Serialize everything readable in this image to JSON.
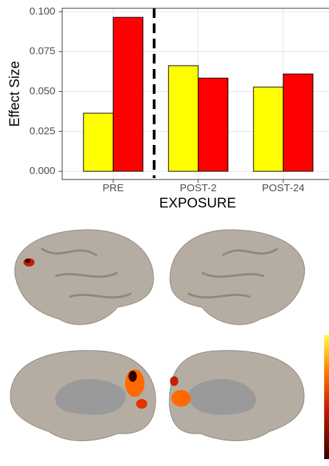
{
  "chart_data": {
    "type": "bar",
    "y_label": "Effect Size",
    "x_label": "EXPOSURE",
    "categories": [
      "PRE",
      "POST-2",
      "POST-24"
    ],
    "series": [
      {
        "color": "#ffff00",
        "values": [
          0.0364,
          0.0662,
          0.0528
        ]
      },
      {
        "color": "#ff0000",
        "values": [
          0.0965,
          0.0584,
          0.061
        ]
      }
    ],
    "ylim": [
      -0.0048,
      0.1
    ],
    "yticks": [
      {
        "value": 0,
        "label": "0.000"
      },
      {
        "value": 0.025,
        "label": "0.025"
      },
      {
        "value": 0.05,
        "label": "0.050"
      },
      {
        "value": 0.075,
        "label": "0.075"
      },
      {
        "value": 0.1,
        "label": "0.100"
      }
    ],
    "grid": true
  }
}
